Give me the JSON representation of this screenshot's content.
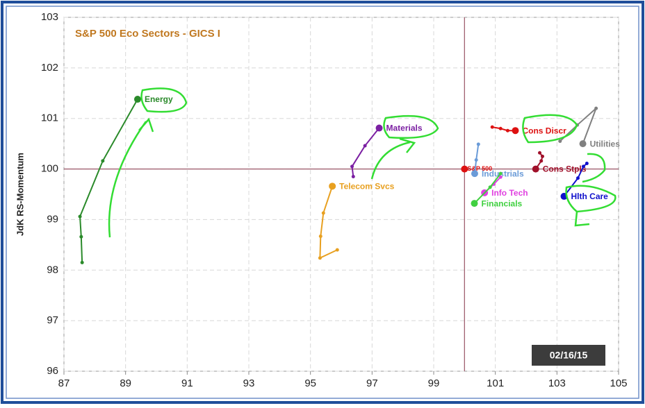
{
  "chart_data": {
    "type": "line",
    "title": "S&P 500 Eco Sectors - GICS I",
    "y_label": "JdK RS-Momentum",
    "date": "02/16/15",
    "xlim": [
      87,
      105
    ],
    "xticks": [
      87,
      89,
      91,
      93,
      95,
      97,
      99,
      101,
      103,
      105
    ],
    "ylim": [
      96,
      103
    ],
    "yticks": [
      96,
      97,
      98,
      99,
      100,
      101,
      102,
      103
    ],
    "grid": true,
    "crosshair": [
      100,
      100
    ],
    "series": [
      {
        "name": "Energy",
        "color": "#2a8a2a",
        "x": [
          87.59,
          87.56,
          87.52,
          88.26,
          89.39
        ],
        "y": [
          98.15,
          98.66,
          99.06,
          100.16,
          101.38
        ]
      },
      {
        "name": "Materials",
        "color": "#7b1fa2",
        "x": [
          96.39,
          96.35,
          96.77,
          97.23
        ],
        "y": [
          99.85,
          100.05,
          100.46,
          100.81
        ]
      },
      {
        "name": "Telecom Svcs",
        "color": "#e8a020",
        "x": [
          95.87,
          95.31,
          95.33,
          95.42,
          95.71
        ],
        "y": [
          98.4,
          98.24,
          98.67,
          99.13,
          99.66
        ]
      },
      {
        "name": "S&P 500",
        "color": "#dd1111",
        "x": [
          100
        ],
        "y": [
          100
        ]
      },
      {
        "name": "Industrials",
        "color": "#6a9bd8",
        "x": [
          100.45,
          100.38,
          100.33
        ],
        "y": [
          100.49,
          100.18,
          99.91
        ]
      },
      {
        "name": "Cons Discr",
        "color": "#dd1111",
        "x": [
          100.9,
          101.17,
          101.4,
          101.65
        ],
        "y": [
          100.83,
          100.8,
          100.76,
          100.76
        ]
      },
      {
        "name": "Cons Stpls",
        "color": "#a0102a",
        "x": [
          102.44,
          102.53,
          102.49,
          102.31
        ],
        "y": [
          100.32,
          100.25,
          100.16,
          100.0
        ]
      },
      {
        "name": "Utilities",
        "color": "#808080",
        "x": [
          103.1,
          103.66,
          104.27,
          103.84
        ],
        "y": [
          100.55,
          100.87,
          101.2,
          100.5
        ]
      },
      {
        "name": "Hlth Care",
        "color": "#1010cc",
        "x": [
          103.97,
          103.86,
          103.68,
          103.23
        ],
        "y": [
          100.11,
          100.05,
          99.82,
          99.46
        ]
      },
      {
        "name": "Info Tech",
        "color": "#e040e0",
        "x": [
          101.17,
          100.95,
          100.65
        ],
        "y": [
          99.84,
          99.7,
          99.53
        ]
      },
      {
        "name": "Financials",
        "color": "#40d040",
        "x": [
          101.17,
          100.83,
          100.32
        ],
        "y": [
          99.91,
          99.64,
          99.32
        ]
      }
    ]
  }
}
